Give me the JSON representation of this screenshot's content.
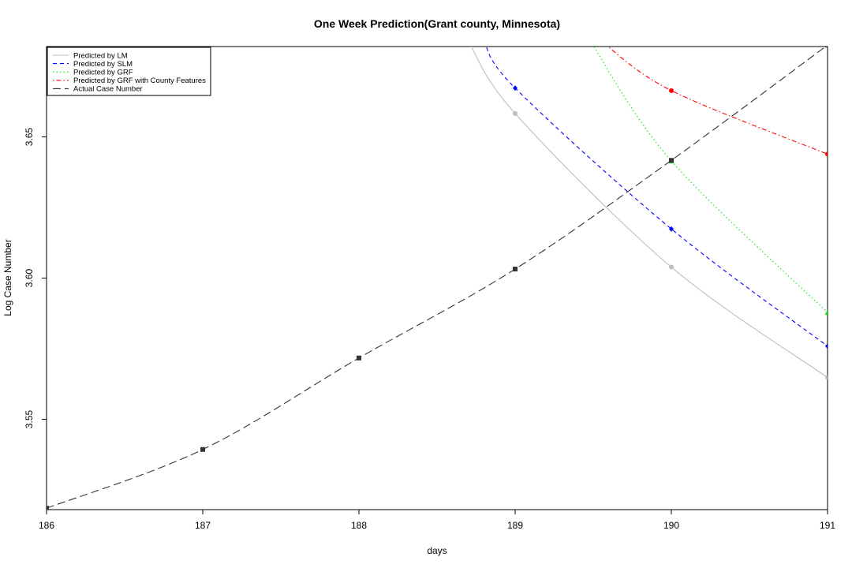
{
  "chart_data": {
    "type": "line",
    "title": "One Week Prediction(Grant county, Minnesota)",
    "xlabel": "days",
    "ylabel": "Log Case Number",
    "xlim": [
      186,
      191
    ],
    "ylim": [
      3.518,
      3.682
    ],
    "xticks": [
      "186",
      "187",
      "188",
      "189",
      "190",
      "191"
    ],
    "yticks": [
      "3.55",
      "3.60",
      "3.65"
    ],
    "grid": false,
    "legend_position": "top-left",
    "series": [
      {
        "name": "Predicted by LM",
        "color": "#bebebe",
        "dash": "solid",
        "marker": "circle",
        "x": [
          188.7,
          189,
          190,
          191
        ],
        "y": [
          3.684,
          3.6583,
          3.6039,
          3.5648
        ]
      },
      {
        "name": "Predicted by SLM",
        "color": "#0000ff",
        "dash": "dashed",
        "marker": "diamond",
        "x": [
          188.8,
          189,
          190,
          191
        ],
        "y": [
          3.684,
          3.6673,
          3.6174,
          3.5759
        ]
      },
      {
        "name": "Predicted by GRF",
        "color": "#00ee00",
        "dash": "dotted",
        "marker": "triangle",
        "x": [
          189.48,
          190,
          191
        ],
        "y": [
          3.684,
          3.6415,
          3.5878
        ]
      },
      {
        "name": "Predicted by GRF with County Features",
        "color": "#ff0000",
        "dash": "dotdash",
        "marker": "circle",
        "x": [
          189.55,
          190,
          191
        ],
        "y": [
          3.684,
          3.6664,
          3.6439
        ]
      },
      {
        "name": "Actual Case Number",
        "color": "#333333",
        "dash": "longdash",
        "marker": "square",
        "x": [
          186,
          187,
          188,
          189,
          190,
          191
        ],
        "y": [
          3.5185,
          3.5393,
          3.5717,
          3.6032,
          3.6417,
          3.6825
        ]
      }
    ]
  }
}
